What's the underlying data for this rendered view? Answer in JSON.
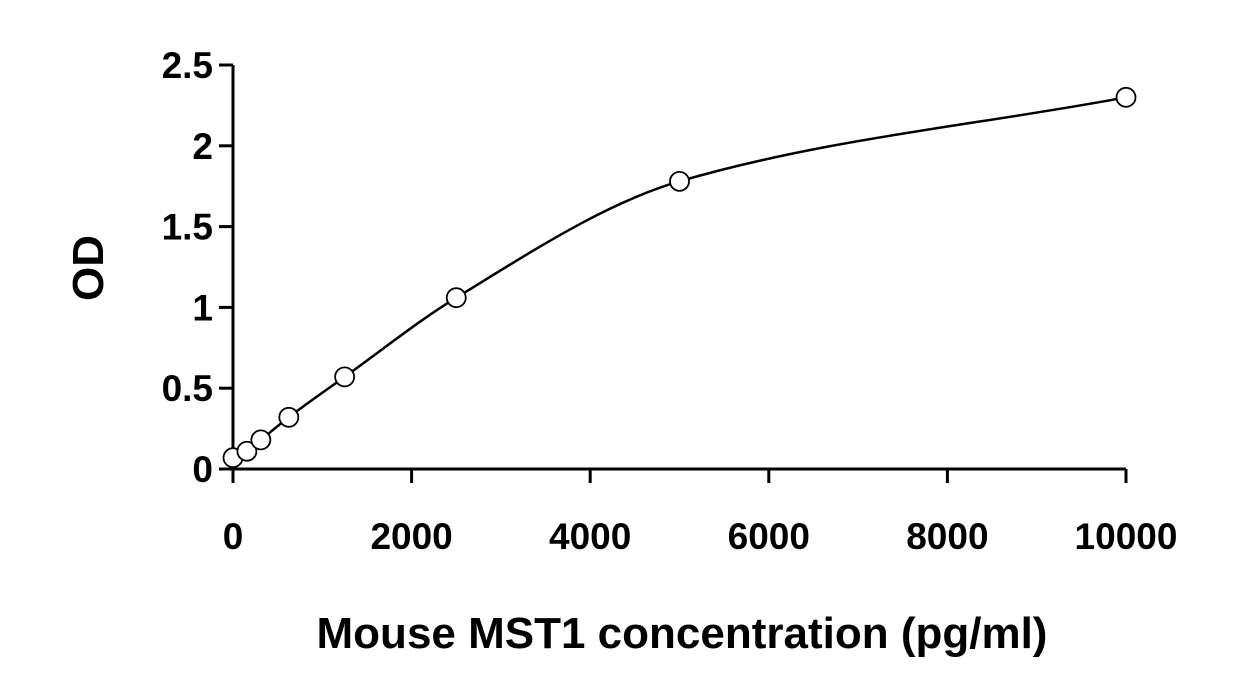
{
  "chart_data": {
    "type": "scatter",
    "title": "",
    "xlabel": "Mouse MST1 concentration (pg/ml)",
    "ylabel": "OD",
    "xlim": [
      0,
      10000
    ],
    "ylim": [
      0,
      2.5
    ],
    "x_ticks": [
      "0",
      "2000",
      "4000",
      "6000",
      "8000",
      "10000"
    ],
    "y_ticks": [
      "0",
      "0.5",
      "1",
      "1.5",
      "2",
      "2.5"
    ],
    "grid": false,
    "legend": "none",
    "series": [
      {
        "marker": "open-circle",
        "x": [
          0,
          156,
          312,
          625,
          1250,
          2500,
          5000,
          10000
        ],
        "y": [
          0.07,
          0.11,
          0.18,
          0.32,
          0.57,
          1.06,
          1.78,
          2.3
        ]
      }
    ],
    "fit_curve": "smooth"
  }
}
